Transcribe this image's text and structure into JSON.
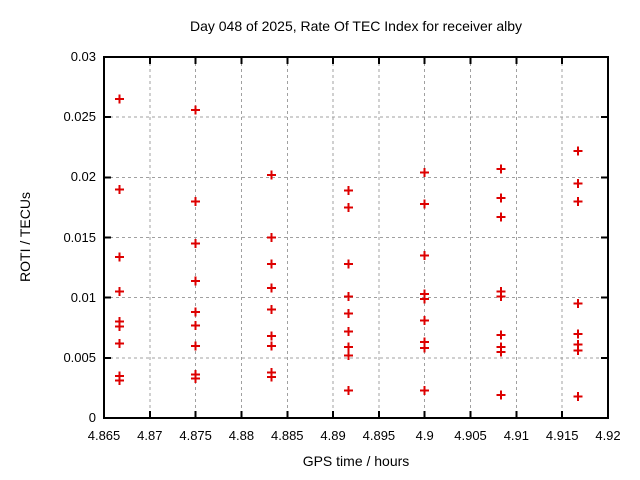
{
  "window": {
    "background": "#ffffff",
    "text_color": "#000000",
    "grid_color": "#a0a0a0",
    "border_color": "#000000"
  },
  "chart_data": {
    "type": "scatter",
    "title": "Day 048 of 2025, Rate Of TEC Index for receiver alby",
    "xlabel": "GPS time / hours",
    "ylabel": "ROTI / TECUs",
    "xlim": [
      4.865,
      4.92
    ],
    "ylim": [
      0,
      0.03
    ],
    "grid": true,
    "legend": "none",
    "marker": {
      "symbol": "plus",
      "color": "#dd0000",
      "size": 9
    },
    "xticks": {
      "values": [
        4.865,
        4.87,
        4.875,
        4.88,
        4.885,
        4.89,
        4.895,
        4.9,
        4.905,
        4.91,
        4.915,
        4.92
      ],
      "labels": [
        "4.865",
        "4.87",
        "4.875",
        "4.88",
        "4.885",
        "4.89",
        "4.895",
        "4.9",
        "4.905",
        "4.91",
        "4.915",
        "4.92"
      ]
    },
    "yticks": {
      "values": [
        0,
        0.005,
        0.01,
        0.015,
        0.02,
        0.025,
        0.03
      ],
      "labels": [
        "0",
        "0.005",
        "0.01",
        "0.015",
        "0.02",
        "0.025",
        "0.03"
      ]
    },
    "series": [
      {
        "name": "roti",
        "points": [
          [
            4.8667,
            0.0265
          ],
          [
            4.8667,
            0.019
          ],
          [
            4.8667,
            0.0134
          ],
          [
            4.8667,
            0.0105
          ],
          [
            4.8667,
            0.008
          ],
          [
            4.8667,
            0.0076
          ],
          [
            4.8667,
            0.0062
          ],
          [
            4.8667,
            0.0035
          ],
          [
            4.8667,
            0.0031
          ],
          [
            4.875,
            0.0256
          ],
          [
            4.875,
            0.018
          ],
          [
            4.875,
            0.0145
          ],
          [
            4.875,
            0.0114
          ],
          [
            4.875,
            0.0088
          ],
          [
            4.875,
            0.0077
          ],
          [
            4.875,
            0.006
          ],
          [
            4.875,
            0.0036
          ],
          [
            4.875,
            0.0033
          ],
          [
            4.8833,
            0.0202
          ],
          [
            4.8833,
            0.015
          ],
          [
            4.8833,
            0.0128
          ],
          [
            4.8833,
            0.0108
          ],
          [
            4.8833,
            0.009
          ],
          [
            4.8833,
            0.0068
          ],
          [
            4.8833,
            0.006
          ],
          [
            4.8833,
            0.0038
          ],
          [
            4.8833,
            0.0034
          ],
          [
            4.8917,
            0.0189
          ],
          [
            4.8917,
            0.0175
          ],
          [
            4.8917,
            0.0128
          ],
          [
            4.8917,
            0.0101
          ],
          [
            4.8917,
            0.0087
          ],
          [
            4.8917,
            0.0072
          ],
          [
            4.8917,
            0.0059
          ],
          [
            4.8917,
            0.0052
          ],
          [
            4.8917,
            0.0023
          ],
          [
            4.9,
            0.0204
          ],
          [
            4.9,
            0.0178
          ],
          [
            4.9,
            0.0135
          ],
          [
            4.9,
            0.0103
          ],
          [
            4.9,
            0.0099
          ],
          [
            4.9,
            0.0081
          ],
          [
            4.9,
            0.0063
          ],
          [
            4.9,
            0.0058
          ],
          [
            4.9,
            0.0023
          ],
          [
            4.9083,
            0.0207
          ],
          [
            4.9083,
            0.0183
          ],
          [
            4.9083,
            0.0167
          ],
          [
            4.9083,
            0.0105
          ],
          [
            4.9083,
            0.0101
          ],
          [
            4.9083,
            0.0069
          ],
          [
            4.9083,
            0.0059
          ],
          [
            4.9083,
            0.0055
          ],
          [
            4.9083,
            0.0019
          ],
          [
            4.9167,
            0.0222
          ],
          [
            4.9167,
            0.0195
          ],
          [
            4.9167,
            0.018
          ],
          [
            4.9167,
            0.0095
          ],
          [
            4.9167,
            0.007
          ],
          [
            4.9167,
            0.0061
          ],
          [
            4.9167,
            0.0056
          ],
          [
            4.9167,
            0.0018
          ]
        ]
      }
    ]
  }
}
